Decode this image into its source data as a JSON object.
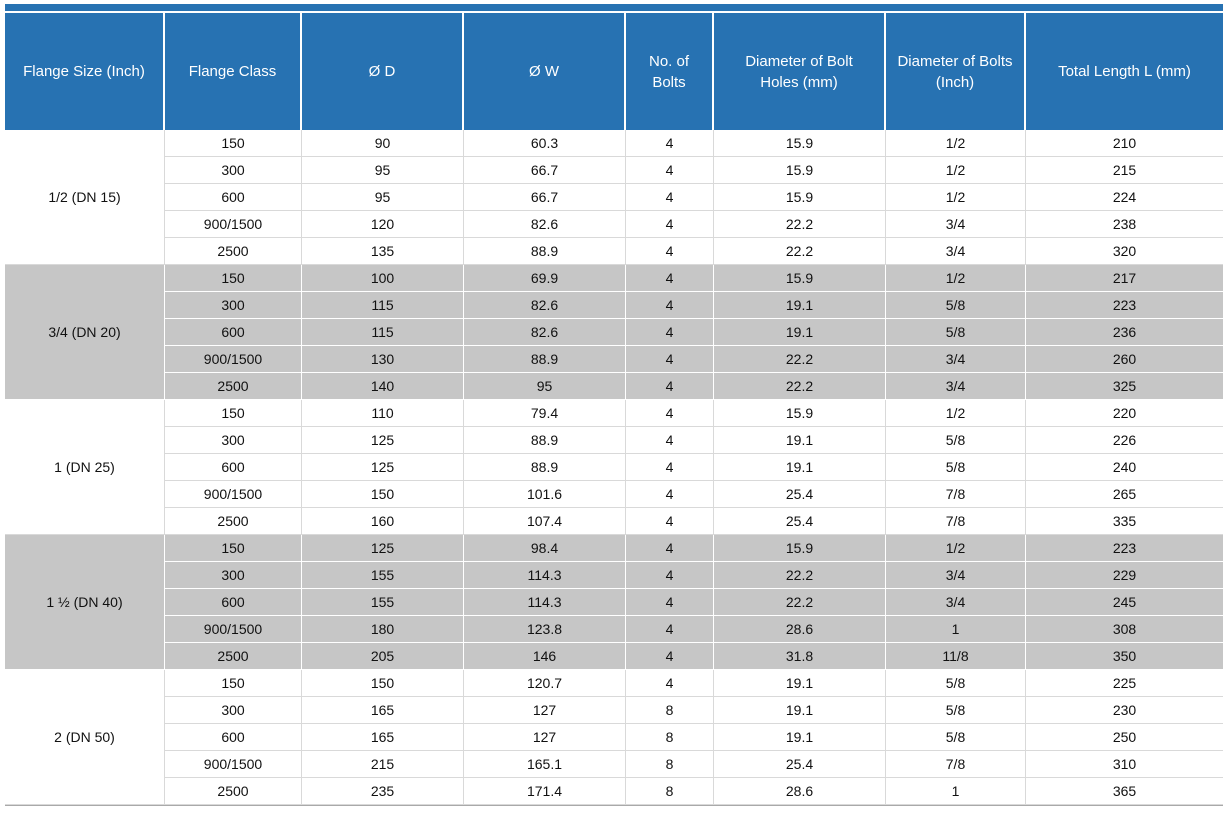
{
  "table": {
    "accent_color": "#2772b2",
    "band_color": "#c6c6c6",
    "grid_color_light": "#d9d9d9",
    "bottom_rule_color": "#a9a9a9",
    "header_text_color": "#ffffff",
    "body_text_color": "#111111",
    "columns": [
      "Flange Size (Inch)",
      "Flange Class",
      "Ø D",
      "Ø W",
      "No. of Bolts",
      "Diameter of Bolt Holes (mm)",
      "Diameter of Bolts (Inch)",
      "Total Length L (mm)"
    ],
    "column_keys": [
      "flange-size",
      "flange-class",
      "d",
      "w",
      "no-of-bolts",
      "bolt-hole-diameter",
      "bolt-diameter",
      "total-length"
    ],
    "groups": [
      {
        "size": "1/2 (DN 15)",
        "shaded": false,
        "rows": [
          [
            "150",
            "90",
            "60.3",
            "4",
            "15.9",
            "1/2",
            "210"
          ],
          [
            "300",
            "95",
            "66.7",
            "4",
            "15.9",
            "1/2",
            "215"
          ],
          [
            "600",
            "95",
            "66.7",
            "4",
            "15.9",
            "1/2",
            "224"
          ],
          [
            "900/1500",
            "120",
            "82.6",
            "4",
            "22.2",
            "3/4",
            "238"
          ],
          [
            "2500",
            "135",
            "88.9",
            "4",
            "22.2",
            "3/4",
            "320"
          ]
        ]
      },
      {
        "size": "3/4 (DN 20)",
        "shaded": true,
        "rows": [
          [
            "150",
            "100",
            "69.9",
            "4",
            "15.9",
            "1/2",
            "217"
          ],
          [
            "300",
            "115",
            "82.6",
            "4",
            "19.1",
            "5/8",
            "223"
          ],
          [
            "600",
            "115",
            "82.6",
            "4",
            "19.1",
            "5/8",
            "236"
          ],
          [
            "900/1500",
            "130",
            "88.9",
            "4",
            "22.2",
            "3/4",
            "260"
          ],
          [
            "2500",
            "140",
            "95",
            "4",
            "22.2",
            "3/4",
            "325"
          ]
        ]
      },
      {
        "size": "1 (DN 25)",
        "shaded": false,
        "rows": [
          [
            "150",
            "110",
            "79.4",
            "4",
            "15.9",
            "1/2",
            "220"
          ],
          [
            "300",
            "125",
            "88.9",
            "4",
            "19.1",
            "5/8",
            "226"
          ],
          [
            "600",
            "125",
            "88.9",
            "4",
            "19.1",
            "5/8",
            "240"
          ],
          [
            "900/1500",
            "150",
            "101.6",
            "4",
            "25.4",
            "7/8",
            "265"
          ],
          [
            "2500",
            "160",
            "107.4",
            "4",
            "25.4",
            "7/8",
            "335"
          ]
        ]
      },
      {
        "size": "1 ½  (DN 40)",
        "shaded": true,
        "rows": [
          [
            "150",
            "125",
            "98.4",
            "4",
            "15.9",
            "1/2",
            "223"
          ],
          [
            "300",
            "155",
            "114.3",
            "4",
            "22.2",
            "3/4",
            "229"
          ],
          [
            "600",
            "155",
            "114.3",
            "4",
            "22.2",
            "3/4",
            "245"
          ],
          [
            "900/1500",
            "180",
            "123.8",
            "4",
            "28.6",
            "1",
            "308"
          ],
          [
            "2500",
            "205",
            "146",
            "4",
            "31.8",
            "11/8",
            "350"
          ]
        ]
      },
      {
        "size": "2 (DN 50)",
        "shaded": false,
        "rows": [
          [
            "150",
            "150",
            "120.7",
            "4",
            "19.1",
            "5/8",
            "225"
          ],
          [
            "300",
            "165",
            "127",
            "8",
            "19.1",
            "5/8",
            "230"
          ],
          [
            "600",
            "165",
            "127",
            "8",
            "19.1",
            "5/8",
            "250"
          ],
          [
            "900/1500",
            "215",
            "165.1",
            "8",
            "25.4",
            "7/8",
            "310"
          ],
          [
            "2500",
            "235",
            "171.4",
            "8",
            "28.6",
            "1",
            "365"
          ]
        ]
      }
    ]
  }
}
